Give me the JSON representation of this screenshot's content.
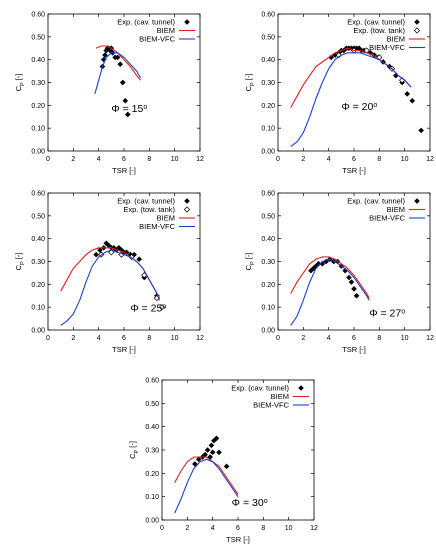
{
  "chart_data": [
    {
      "type": "scatter",
      "annotation": "Φ = 15°",
      "annotation_pos": [
        5.0,
        0.17
      ],
      "xlabel": "TSR [-]",
      "ylabel": "C_P [-]",
      "xlim": [
        0,
        12
      ],
      "ylim": [
        0,
        0.6
      ],
      "xticks": [
        "0",
        "2",
        "4",
        "6",
        "8",
        "10",
        "12"
      ],
      "yticks": [
        "0.00",
        "0.10",
        "0.20",
        "0.30",
        "0.40",
        "0.50",
        "0.60"
      ],
      "legend_position": "top-right",
      "series": [
        {
          "name": "Exp. (cav. tunnel)",
          "kind": "points",
          "marker": "filled-diamond",
          "color": "#000000",
          "x": [
            4.3,
            4.4,
            4.5,
            4.6,
            4.7,
            4.8,
            4.9,
            5.0,
            5.1,
            5.3,
            5.5,
            5.7,
            5.9,
            6.1,
            6.3
          ],
          "y": [
            0.37,
            0.4,
            0.42,
            0.44,
            0.45,
            0.45,
            0.44,
            0.45,
            0.43,
            0.41,
            0.41,
            0.38,
            0.3,
            0.22,
            0.16
          ]
        },
        {
          "name": "BIEM",
          "kind": "line",
          "color": "#e02020",
          "x": [
            3.8,
            4.2,
            4.6,
            5.0,
            5.5,
            6.0,
            6.5,
            7.0,
            7.3
          ],
          "y": [
            0.45,
            0.46,
            0.46,
            0.45,
            0.43,
            0.4,
            0.37,
            0.33,
            0.31
          ]
        },
        {
          "name": "BIEM-VFC",
          "kind": "line",
          "color": "#1f3fd0",
          "x": [
            3.7,
            4.0,
            4.3,
            4.6,
            5.0,
            5.5,
            6.0,
            6.5,
            7.0,
            7.3
          ],
          "y": [
            0.25,
            0.31,
            0.37,
            0.41,
            0.43,
            0.43,
            0.41,
            0.38,
            0.35,
            0.32
          ]
        }
      ]
    },
    {
      "type": "scatter",
      "annotation": "Φ = 20°",
      "annotation_pos": [
        5.0,
        0.18
      ],
      "xlabel": "TSR [-]",
      "ylabel": "C_P [-]",
      "xlim": [
        0,
        12
      ],
      "ylim": [
        0,
        0.6
      ],
      "xticks": [
        "0",
        "2",
        "4",
        "6",
        "8",
        "10",
        "12"
      ],
      "yticks": [
        "0.00",
        "0.10",
        "0.20",
        "0.30",
        "0.40",
        "0.50",
        "0.60"
      ],
      "legend_position": "top-right",
      "series": [
        {
          "name": "Exp. (cav. tunnel)",
          "kind": "points",
          "marker": "filled-diamond",
          "color": "#000000",
          "x": [
            4.2,
            4.5,
            4.8,
            5.0,
            5.2,
            5.4,
            5.6,
            5.8,
            6.0,
            6.2,
            6.4,
            6.6,
            6.8,
            7.0,
            7.3,
            7.6,
            7.9,
            8.3,
            8.8,
            9.3,
            9.8,
            10.2,
            10.6,
            11.3
          ],
          "y": [
            0.41,
            0.42,
            0.43,
            0.44,
            0.44,
            0.45,
            0.45,
            0.45,
            0.45,
            0.45,
            0.45,
            0.44,
            0.44,
            0.44,
            0.43,
            0.42,
            0.41,
            0.39,
            0.37,
            0.33,
            0.3,
            0.25,
            0.22,
            0.09
          ]
        },
        {
          "name": "Exp. (tow. tank)",
          "kind": "points",
          "marker": "open-diamond",
          "color": "#000000",
          "x": [
            4.8,
            6.0,
            7.0,
            8.0,
            9.0,
            9.8
          ],
          "y": [
            0.42,
            0.44,
            0.44,
            0.41,
            0.36,
            0.31
          ]
        },
        {
          "name": "BIEM",
          "kind": "line",
          "color": "#e02020",
          "x": [
            1.0,
            1.5,
            2.0,
            2.5,
            3.0,
            3.5,
            4.0,
            4.5,
            5.0,
            5.5,
            6.0,
            6.5,
            7.0,
            7.5,
            8.0,
            8.5,
            9.0,
            9.5,
            10.0,
            10.5
          ],
          "y": [
            0.19,
            0.24,
            0.29,
            0.33,
            0.37,
            0.39,
            0.41,
            0.43,
            0.44,
            0.45,
            0.44,
            0.44,
            0.43,
            0.42,
            0.4,
            0.38,
            0.36,
            0.33,
            0.31,
            0.28
          ]
        },
        {
          "name": "BIEM-VFC",
          "kind": "line",
          "color": "#1f3fd0",
          "x": [
            1.0,
            1.5,
            2.0,
            2.5,
            3.0,
            3.5,
            4.0,
            4.5,
            5.0,
            5.5,
            6.0,
            6.5,
            7.0,
            7.5,
            8.0,
            8.5,
            9.0,
            9.5,
            10.0,
            10.5
          ],
          "y": [
            0.02,
            0.04,
            0.08,
            0.15,
            0.23,
            0.3,
            0.36,
            0.4,
            0.42,
            0.43,
            0.43,
            0.43,
            0.42,
            0.41,
            0.4,
            0.38,
            0.36,
            0.33,
            0.31,
            0.28
          ]
        }
      ]
    },
    {
      "type": "scatter",
      "annotation": "Φ = 25°",
      "annotation_pos": [
        6.5,
        0.08
      ],
      "xlabel": "TSR [-]",
      "ylabel": "C_P [-]",
      "xlim": [
        0,
        12
      ],
      "ylim": [
        0,
        0.6
      ],
      "xticks": [
        "0",
        "2",
        "4",
        "6",
        "8",
        "10",
        "12"
      ],
      "yticks": [
        "0.00",
        "0.10",
        "0.20",
        "0.30",
        "0.40",
        "0.50",
        "0.60"
      ],
      "legend_position": "top-right",
      "series": [
        {
          "name": "Exp. (cav. tunnel)",
          "kind": "points",
          "marker": "filled-diamond",
          "color": "#000000",
          "x": [
            3.8,
            4.1,
            4.4,
            4.6,
            4.8,
            5.0,
            5.2,
            5.4,
            5.6,
            5.8,
            6.0,
            6.2,
            6.5,
            6.8,
            7.2,
            7.6,
            8.6
          ],
          "y": [
            0.33,
            0.35,
            0.36,
            0.38,
            0.37,
            0.36,
            0.36,
            0.35,
            0.36,
            0.35,
            0.34,
            0.34,
            0.33,
            0.33,
            0.31,
            0.23,
            0.15
          ]
        },
        {
          "name": "Exp. (tow. tank)",
          "kind": "points",
          "marker": "open-diamond",
          "color": "#000000",
          "x": [
            4.2,
            5.0,
            5.8,
            6.6,
            7.6,
            8.6,
            9.0
          ],
          "y": [
            0.33,
            0.34,
            0.33,
            0.32,
            0.24,
            0.14,
            0.1
          ]
        },
        {
          "name": "BIEM",
          "kind": "line",
          "color": "#e02020",
          "x": [
            1.0,
            1.5,
            2.0,
            2.5,
            3.0,
            3.5,
            4.0,
            4.5,
            5.0,
            5.5,
            6.0,
            6.5,
            7.0,
            7.5,
            8.0,
            8.5,
            8.8
          ],
          "y": [
            0.17,
            0.22,
            0.27,
            0.3,
            0.33,
            0.35,
            0.36,
            0.36,
            0.36,
            0.35,
            0.34,
            0.32,
            0.3,
            0.27,
            0.22,
            0.17,
            0.14
          ]
        },
        {
          "name": "BIEM-VFC",
          "kind": "line",
          "color": "#1f3fd0",
          "x": [
            1.0,
            1.5,
            2.0,
            2.5,
            3.0,
            3.5,
            4.0,
            4.5,
            5.0,
            5.5,
            6.0,
            6.5,
            7.0,
            7.5,
            8.0,
            8.5,
            8.8
          ],
          "y": [
            0.02,
            0.04,
            0.07,
            0.13,
            0.21,
            0.28,
            0.32,
            0.34,
            0.35,
            0.34,
            0.33,
            0.32,
            0.3,
            0.27,
            0.22,
            0.17,
            0.13
          ]
        }
      ]
    },
    {
      "type": "scatter",
      "annotation": "Φ = 27°",
      "annotation_pos": [
        7.2,
        0.06
      ],
      "xlabel": "TSR [-]",
      "ylabel": "C_P [-]",
      "xlim": [
        0,
        12
      ],
      "ylim": [
        0,
        0.6
      ],
      "xticks": [
        "0",
        "2",
        "4",
        "6",
        "8",
        "10",
        "12"
      ],
      "yticks": [
        "0.00",
        "0.10",
        "0.20",
        "0.30",
        "0.40",
        "0.50",
        "0.60"
      ],
      "legend_position": "top-right",
      "series": [
        {
          "name": "Exp. (cav. tunnel)",
          "kind": "points",
          "marker": "filled-diamond",
          "color": "#000000",
          "x": [
            2.6,
            2.8,
            3.0,
            3.2,
            3.5,
            3.8,
            4.1,
            4.4,
            4.7,
            5.0,
            5.3,
            5.6,
            5.8,
            6.0,
            6.2
          ],
          "y": [
            0.26,
            0.27,
            0.28,
            0.29,
            0.29,
            0.3,
            0.31,
            0.3,
            0.3,
            0.28,
            0.26,
            0.23,
            0.21,
            0.18,
            0.15
          ]
        },
        {
          "name": "BIEM",
          "kind": "line",
          "color": "#e02020",
          "x": [
            1.0,
            1.5,
            2.0,
            2.5,
            3.0,
            3.5,
            4.0,
            4.5,
            5.0,
            5.5,
            6.0,
            6.5,
            7.0,
            7.2
          ],
          "y": [
            0.16,
            0.21,
            0.25,
            0.29,
            0.31,
            0.32,
            0.32,
            0.31,
            0.29,
            0.27,
            0.24,
            0.2,
            0.16,
            0.14
          ]
        },
        {
          "name": "BIEM-VFC",
          "kind": "line",
          "color": "#1f3fd0",
          "x": [
            1.0,
            1.5,
            2.0,
            2.5,
            3.0,
            3.5,
            4.0,
            4.5,
            5.0,
            5.5,
            6.0,
            6.5,
            7.0,
            7.2
          ],
          "y": [
            0.02,
            0.06,
            0.13,
            0.21,
            0.27,
            0.3,
            0.31,
            0.3,
            0.28,
            0.26,
            0.23,
            0.19,
            0.15,
            0.13
          ]
        }
      ]
    },
    {
      "type": "scatter",
      "annotation": "Φ = 30°",
      "annotation_pos": [
        5.5,
        0.06
      ],
      "xlabel": "TSR [-]",
      "ylabel": "C_P [-]",
      "xlim": [
        0,
        12
      ],
      "ylim": [
        0,
        0.6
      ],
      "xticks": [
        "0",
        "2",
        "4",
        "6",
        "8",
        "10",
        "12"
      ],
      "yticks": [
        "0.00",
        "0.10",
        "0.20",
        "0.30",
        "0.40",
        "0.50",
        "0.60"
      ],
      "legend_position": "top-right",
      "series": [
        {
          "name": "Exp. (cav. tunnel)",
          "kind": "points",
          "marker": "filled-diamond",
          "color": "#000000",
          "x": [
            2.6,
            2.9,
            3.2,
            3.4,
            3.6,
            3.8,
            3.9,
            4.0,
            4.1,
            4.3,
            4.5,
            5.1
          ],
          "y": [
            0.24,
            0.26,
            0.27,
            0.28,
            0.3,
            0.27,
            0.32,
            0.29,
            0.34,
            0.35,
            0.29,
            0.23
          ]
        },
        {
          "name": "BIEM",
          "kind": "line",
          "color": "#e02020",
          "x": [
            1.0,
            1.5,
            2.0,
            2.5,
            3.0,
            3.5,
            4.0,
            4.5,
            5.0,
            5.5,
            6.0
          ],
          "y": [
            0.16,
            0.21,
            0.25,
            0.27,
            0.27,
            0.27,
            0.25,
            0.23,
            0.19,
            0.15,
            0.11
          ]
        },
        {
          "name": "BIEM-VFC",
          "kind": "line",
          "color": "#1f3fd0",
          "x": [
            1.0,
            1.5,
            2.0,
            2.5,
            3.0,
            3.5,
            4.0,
            4.5,
            5.0,
            5.5,
            6.0
          ],
          "y": [
            0.03,
            0.09,
            0.16,
            0.22,
            0.25,
            0.26,
            0.25,
            0.22,
            0.18,
            0.14,
            0.1
          ]
        }
      ]
    }
  ]
}
